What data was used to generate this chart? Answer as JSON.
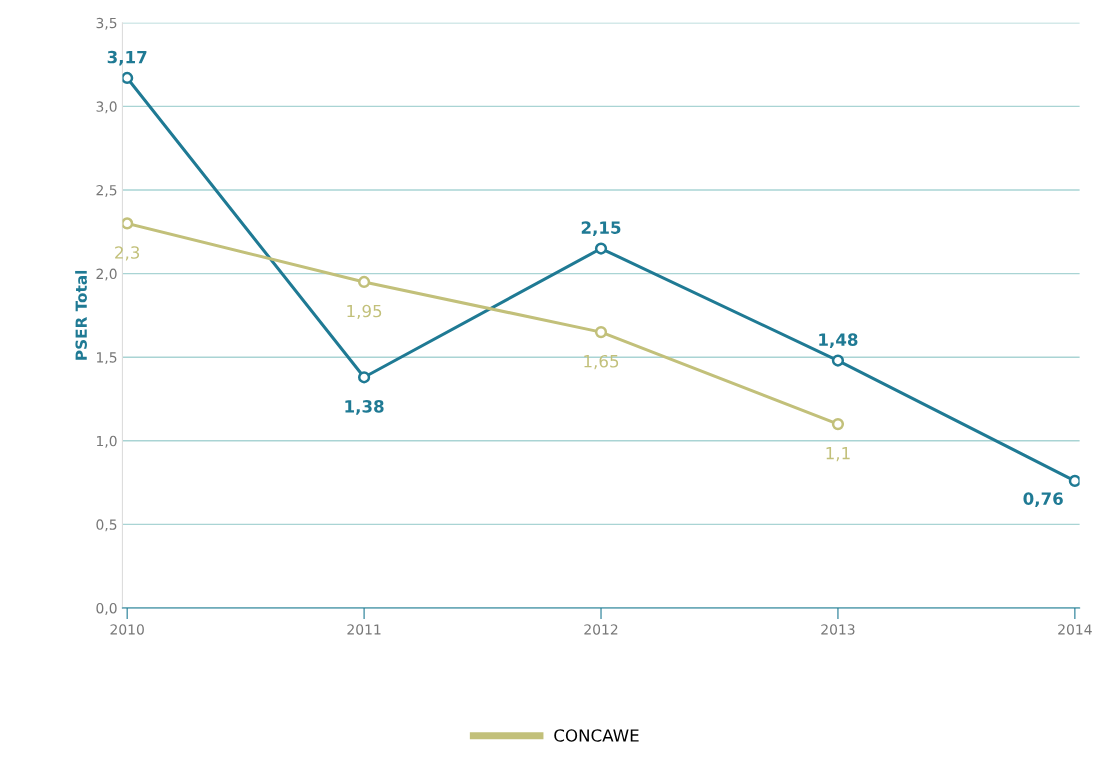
{
  "chart_data": {
    "type": "line",
    "ylabel": "PSER Total",
    "categories": [
      "2010",
      "2011",
      "2012",
      "2013",
      "2014"
    ],
    "series": [
      {
        "color": "#1f7a94",
        "values": [
          3.17,
          1.38,
          2.15,
          1.48,
          0.76
        ],
        "value_labels": [
          "3,17",
          "1,38",
          "2,15",
          "1,48",
          "0,76"
        ]
      },
      {
        "name": "CONCAWE",
        "color": "#c2c07a",
        "values": [
          2.3,
          1.95,
          1.65,
          1.1,
          null
        ],
        "value_labels": [
          "2,3",
          "1,95",
          "1,65",
          "1,1",
          null
        ]
      }
    ],
    "ylim": [
      0,
      3.5
    ],
    "yticks": [
      {
        "value": 0,
        "label": "0,0"
      },
      {
        "value": 0.5,
        "label": "0,5"
      },
      {
        "value": 1,
        "label": "1,0"
      },
      {
        "value": 1.5,
        "label": "1,5"
      },
      {
        "value": 2,
        "label": "2,0"
      },
      {
        "value": 2.5,
        "label": "2,5"
      },
      {
        "value": 3,
        "label": "3,0"
      },
      {
        "value": 3.5,
        "label": "3,5"
      }
    ],
    "grid": "y",
    "legend": "bottom",
    "marker": "circle",
    "line_style": "solid"
  }
}
